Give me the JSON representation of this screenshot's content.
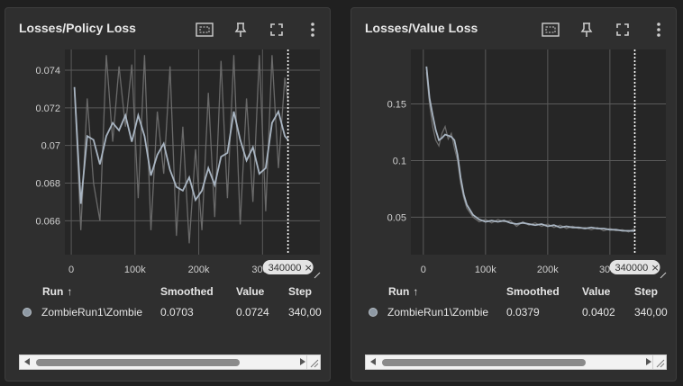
{
  "colors": {
    "card_bg": "#2f2f2f",
    "plot_bg": "#262626",
    "grid": "#5a5a5a",
    "smoothed_line": "#a9b5c2",
    "raw_line": "#6a6a6a",
    "dot": "#8e99a4"
  },
  "icons": [
    "fit-domain-icon",
    "pin-icon",
    "fullscreen-icon",
    "more-vert-icon",
    "close-icon",
    "sort-arrow-up-icon"
  ],
  "table_headers": {
    "run": "Run",
    "smoothed": "Smoothed",
    "value": "Value",
    "step": "Step"
  },
  "cards": [
    {
      "title": "Losses/Policy Loss",
      "step_tag": "340000",
      "row": {
        "run": "ZombieRun1\\Zombie",
        "smoothed": "0.0703",
        "value": "0.0724",
        "step": "340,00"
      }
    },
    {
      "title": "Losses/Value Loss",
      "step_tag": "340000",
      "row": {
        "run": "ZombieRun1\\Zombie",
        "smoothed": "0.0379",
        "value": "0.0402",
        "step": "340,00"
      }
    }
  ],
  "chart_data": [
    {
      "type": "line",
      "title": "Losses/Policy Loss",
      "xticks": [
        "0",
        "100k",
        "200k",
        "300k"
      ],
      "yticks": [
        "0.066",
        "0.068",
        "0.07",
        "0.072",
        "0.074"
      ],
      "xlim": [
        -10000,
        390000
      ],
      "ylim": [
        0.0642,
        0.0751
      ],
      "cursor_step": 340000,
      "series": [
        {
          "name": "ZombieRun1\\Zombie",
          "x": [
            5000,
            15000,
            25000,
            35000,
            45000,
            55000,
            65000,
            75000,
            85000,
            95000,
            105000,
            115000,
            125000,
            135000,
            145000,
            155000,
            165000,
            175000,
            185000,
            195000,
            205000,
            215000,
            225000,
            235000,
            245000,
            255000,
            265000,
            275000,
            285000,
            295000,
            305000,
            315000,
            325000,
            335000,
            340000
          ],
          "smoothed": [
            0.0731,
            0.0669,
            0.0705,
            0.0703,
            0.069,
            0.0705,
            0.0712,
            0.0708,
            0.0716,
            0.0702,
            0.0716,
            0.0705,
            0.0684,
            0.0695,
            0.0701,
            0.0687,
            0.0678,
            0.0676,
            0.0683,
            0.0671,
            0.0676,
            0.0688,
            0.0679,
            0.0694,
            0.0696,
            0.0718,
            0.0703,
            0.0692,
            0.0699,
            0.0685,
            0.0688,
            0.0712,
            0.0718,
            0.0705,
            0.0703
          ],
          "raw": [
            0.0731,
            0.0655,
            0.0725,
            0.068,
            0.066,
            0.0748,
            0.0702,
            0.0742,
            0.071,
            0.0743,
            0.0672,
            0.0748,
            0.0655,
            0.0718,
            0.0685,
            0.0742,
            0.0652,
            0.071,
            0.0648,
            0.0698,
            0.0655,
            0.0728,
            0.0662,
            0.0745,
            0.0672,
            0.0748,
            0.0658,
            0.0725,
            0.067,
            0.0748,
            0.0665,
            0.0748,
            0.0688,
            0.0736,
            0.0724
          ]
        }
      ]
    },
    {
      "type": "line",
      "title": "Losses/Value Loss",
      "xticks": [
        "0",
        "100k",
        "200k",
        "300k"
      ],
      "yticks": [
        "0.05",
        "0.1",
        "0.15"
      ],
      "xlim": [
        -20000,
        390000
      ],
      "ylim": [
        0.017,
        0.198
      ],
      "cursor_step": 340000,
      "series": [
        {
          "name": "ZombieRun1\\Zombie",
          "x": [
            5000,
            10000,
            15000,
            20000,
            25000,
            30000,
            35000,
            40000,
            45000,
            50000,
            55000,
            60000,
            65000,
            70000,
            80000,
            90000,
            100000,
            110000,
            120000,
            130000,
            140000,
            150000,
            160000,
            170000,
            180000,
            190000,
            200000,
            210000,
            220000,
            230000,
            240000,
            250000,
            260000,
            270000,
            280000,
            290000,
            300000,
            310000,
            320000,
            330000,
            340000
          ],
          "smoothed": [
            0.183,
            0.155,
            0.14,
            0.127,
            0.118,
            0.12,
            0.123,
            0.122,
            0.121,
            0.118,
            0.105,
            0.085,
            0.07,
            0.061,
            0.052,
            0.048,
            0.046,
            0.047,
            0.046,
            0.047,
            0.045,
            0.044,
            0.045,
            0.044,
            0.043,
            0.044,
            0.042,
            0.043,
            0.041,
            0.042,
            0.041,
            0.041,
            0.04,
            0.041,
            0.04,
            0.04,
            0.039,
            0.039,
            0.038,
            0.038,
            0.0379
          ],
          "raw": [
            0.178,
            0.15,
            0.13,
            0.118,
            0.113,
            0.124,
            0.13,
            0.119,
            0.124,
            0.111,
            0.1,
            0.08,
            0.067,
            0.058,
            0.05,
            0.046,
            0.048,
            0.045,
            0.048,
            0.046,
            0.047,
            0.042,
            0.046,
            0.043,
            0.045,
            0.042,
            0.044,
            0.041,
            0.043,
            0.04,
            0.042,
            0.04,
            0.041,
            0.039,
            0.041,
            0.038,
            0.04,
            0.038,
            0.039,
            0.037,
            0.0402
          ]
        }
      ]
    }
  ]
}
